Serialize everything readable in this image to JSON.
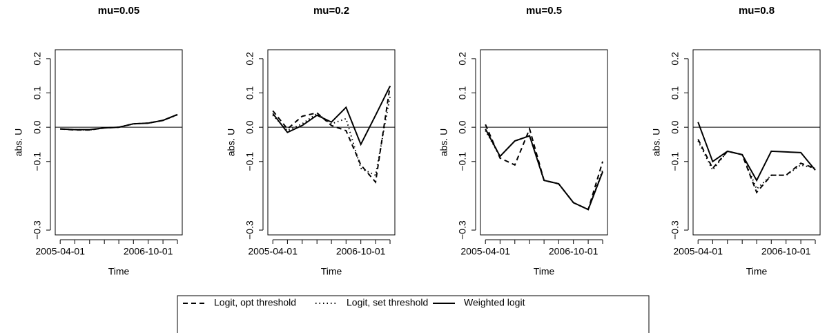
{
  "chart_data": [
    {
      "type": "line",
      "title": "mu=0.05",
      "xlabel": "Time",
      "ylabel": "abs. U",
      "x": [
        "2005-04-01",
        "2005-07-01",
        "2005-10-01",
        "2006-01-01",
        "2006-04-01",
        "2006-07-01",
        "2006-10-01",
        "2007-01-01",
        "2007-04-01"
      ],
      "xlim": [
        "2005-03-01",
        "2007-05-01"
      ],
      "xticks": [
        "2005-04-01",
        "2006-10-01"
      ],
      "ylim": [
        -0.314,
        0.226
      ],
      "yticks": [
        {
          "value": -0.3,
          "label": "−0.3"
        },
        {
          "value": -0.1,
          "label": "−0.1"
        },
        {
          "value": 0,
          "label": "0.0"
        },
        0.1,
        0.2
      ],
      "hline": 0,
      "series": [
        {
          "name": "Logit, opt threshold",
          "color": "#000000",
          "dash": "dashed",
          "values": [
            -0.005,
            -0.008,
            -0.008,
            -0.002,
            0.0,
            0.01,
            0.012,
            0.02,
            0.037
          ]
        },
        {
          "name": "Logit, set threshold",
          "color": "#000000",
          "dash": "dotted",
          "values": [
            -0.005,
            -0.007,
            -0.008,
            -0.002,
            0.0,
            0.01,
            0.012,
            0.02,
            0.036
          ]
        },
        {
          "name": "Weighted logit",
          "color": "#000000",
          "dash": "solid",
          "values": [
            -0.005,
            -0.007,
            -0.007,
            -0.002,
            0.0,
            0.01,
            0.012,
            0.02,
            0.037
          ]
        }
      ]
    },
    {
      "type": "line",
      "title": "mu=0.2",
      "xlabel": "Time",
      "ylabel": "abs. U",
      "x": [
        "2005-04-01",
        "2005-07-01",
        "2005-10-01",
        "2006-01-01",
        "2006-04-01",
        "2006-07-01",
        "2006-10-01",
        "2007-01-01",
        "2007-04-01"
      ],
      "xlim": [
        "2005-03-01",
        "2007-05-01"
      ],
      "xticks": [
        "2005-04-01",
        "2006-10-01"
      ],
      "ylim": [
        -0.314,
        0.226
      ],
      "yticks": [
        {
          "value": -0.3,
          "label": "−0.3"
        },
        {
          "value": -0.1,
          "label": "−0.1"
        },
        {
          "value": 0,
          "label": "0.0"
        },
        0.1,
        0.2
      ],
      "hline": 0,
      "series": [
        {
          "name": "Logit, opt threshold",
          "color": "#000000",
          "dash": "dashed",
          "values": [
            0.048,
            -0.005,
            0.032,
            0.042,
            0.005,
            -0.01,
            -0.11,
            -0.16,
            0.12
          ]
        },
        {
          "name": "Logit, set threshold",
          "color": "#000000",
          "dash": "dotted",
          "values": [
            0.035,
            -0.01,
            0.01,
            0.04,
            0.01,
            0.025,
            -0.12,
            -0.14,
            0.09
          ]
        },
        {
          "name": "Weighted logit",
          "color": "#000000",
          "dash": "solid",
          "values": [
            0.04,
            -0.015,
            0.005,
            0.035,
            0.015,
            0.058,
            -0.05,
            0.035,
            0.12
          ]
        }
      ]
    },
    {
      "type": "line",
      "title": "mu=0.5",
      "xlabel": "Time",
      "ylabel": "abs. U",
      "x": [
        "2005-04-01",
        "2005-07-01",
        "2005-10-01",
        "2006-01-01",
        "2006-04-01",
        "2006-07-01",
        "2006-10-01",
        "2007-01-01",
        "2007-04-01"
      ],
      "xlim": [
        "2005-03-01",
        "2007-05-01"
      ],
      "xticks": [
        "2005-04-01",
        "2006-10-01"
      ],
      "ylim": [
        -0.314,
        0.226
      ],
      "yticks": [
        {
          "value": -0.3,
          "label": "−0.3"
        },
        {
          "value": -0.1,
          "label": "−0.1"
        },
        {
          "value": 0,
          "label": "0.0"
        },
        0.1,
        0.2
      ],
      "hline": 0,
      "series": [
        {
          "name": "Logit, opt threshold",
          "color": "#000000",
          "dash": "dashed",
          "values": [
            0.008,
            -0.09,
            -0.11,
            -0.005,
            -0.155,
            -0.165,
            -0.22,
            -0.24,
            -0.1
          ]
        },
        {
          "name": "Logit, set threshold",
          "color": "#000000",
          "dash": "dotted",
          "values": [
            -0.01,
            -0.085,
            -0.04,
            -0.025,
            -0.155,
            -0.165,
            -0.22,
            -0.24,
            -0.125
          ]
        },
        {
          "name": "Weighted logit",
          "color": "#000000",
          "dash": "solid",
          "values": [
            -0.005,
            -0.085,
            -0.04,
            -0.025,
            -0.155,
            -0.165,
            -0.22,
            -0.24,
            -0.13
          ]
        }
      ]
    },
    {
      "type": "line",
      "title": "mu=0.8",
      "xlabel": "Time",
      "ylabel": "abs. U",
      "x": [
        "2005-04-01",
        "2005-07-01",
        "2005-10-01",
        "2006-01-01",
        "2006-04-01",
        "2006-07-01",
        "2006-10-01",
        "2007-01-01",
        "2007-04-01"
      ],
      "xlim": [
        "2005-03-01",
        "2007-05-01"
      ],
      "xticks": [
        "2005-04-01",
        "2006-10-01"
      ],
      "ylim": [
        -0.314,
        0.226
      ],
      "yticks": [
        {
          "value": -0.3,
          "label": "−0.3"
        },
        {
          "value": -0.1,
          "label": "−0.1"
        },
        {
          "value": 0,
          "label": "0.0"
        },
        0.1,
        0.2
      ],
      "hline": 0,
      "series": [
        {
          "name": "Logit, opt threshold",
          "color": "#000000",
          "dash": "dashed",
          "values": [
            -0.035,
            -0.12,
            -0.07,
            -0.08,
            -0.19,
            -0.14,
            -0.14,
            -0.105,
            -0.12
          ]
        },
        {
          "name": "Logit, set threshold",
          "color": "#000000",
          "dash": "dotted",
          "values": [
            -0.04,
            -0.125,
            -0.07,
            -0.08,
            -0.18,
            -0.14,
            -0.14,
            -0.11,
            -0.12
          ]
        },
        {
          "name": "Weighted logit",
          "color": "#000000",
          "dash": "solid",
          "values": [
            0.015,
            -0.1,
            -0.07,
            -0.08,
            -0.155,
            -0.07,
            -0.072,
            -0.074,
            -0.125
          ]
        }
      ]
    }
  ]
}
